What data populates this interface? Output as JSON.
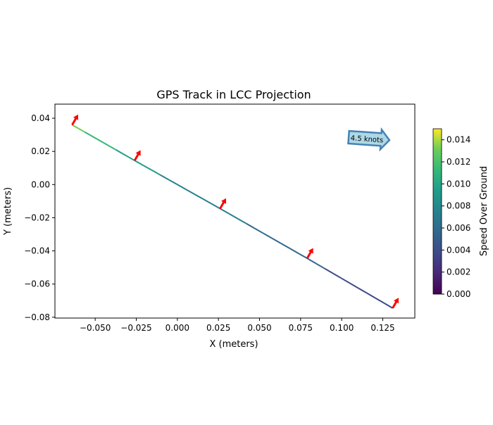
{
  "chart_data": {
    "type": "line",
    "title": "GPS Track in LCC Projection",
    "xlabel": "X (meters)",
    "ylabel": "Y (meters)",
    "xlim": [
      -0.0745,
      0.1445
    ],
    "ylim": [
      -0.0805,
      0.0485
    ],
    "xticks": [
      -0.05,
      -0.025,
      0.0,
      0.025,
      0.05,
      0.075,
      0.1,
      0.125
    ],
    "xtick_labels": [
      "−0.050",
      "−0.025",
      "0.000",
      "0.025",
      "0.050",
      "0.075",
      "0.100",
      "0.125"
    ],
    "yticks": [
      0.04,
      0.02,
      0.0,
      -0.02,
      -0.04,
      -0.06,
      -0.08
    ],
    "ytick_labels": [
      "0.04",
      "0.02",
      "0.00",
      "−0.02",
      "−0.04",
      "−0.06",
      "−0.08"
    ],
    "track": {
      "x": [
        -0.064,
        -0.026,
        0.026,
        0.079,
        0.131
      ],
      "y": [
        0.036,
        0.0145,
        -0.0145,
        -0.0445,
        -0.0745
      ],
      "speed": [
        0.0115,
        0.008,
        0.0065,
        0.0045,
        0.003
      ]
    },
    "heading_arrows": {
      "x": [
        -0.064,
        -0.026,
        0.026,
        0.079,
        0.131
      ],
      "y": [
        0.036,
        0.0145,
        -0.0145,
        -0.0445,
        -0.0745
      ],
      "color": "#ff0000"
    },
    "annotation": {
      "text": "4.5 knots",
      "fill": "#add8e6",
      "edge": "#4682b4"
    },
    "colorbar": {
      "label": "Speed Over Ground",
      "range": [
        0,
        0.015
      ],
      "ticks": [
        0,
        0.002,
        0.004,
        0.006,
        0.008,
        0.01,
        0.012,
        0.014
      ],
      "tick_labels": [
        "0.000",
        "0.002",
        "0.004",
        "0.006",
        "0.008",
        "0.010",
        "0.012",
        "0.014"
      ],
      "colormap": "viridis"
    }
  }
}
